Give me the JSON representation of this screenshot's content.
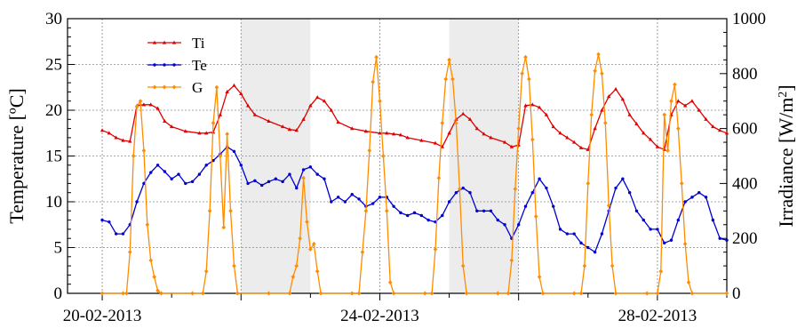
{
  "chart_data": {
    "type": "line",
    "title": "",
    "xlabel": "",
    "ylabel_left": "Temperature [ºC]",
    "ylabel_right_main": "Irradiance [W/m",
    "ylabel_right_sup": "2",
    "ylabel_right_end": "]",
    "x_range_days": [
      -0.5,
      9.0
    ],
    "x_start_date": "20-02-2013",
    "x_tick_labels": [
      {
        "day": 0,
        "label": "20-02-2013"
      },
      {
        "day": 4,
        "label": "24-02-2013"
      },
      {
        "day": 8,
        "label": "28-02-2013"
      }
    ],
    "x_major_ticks": [
      0,
      2,
      4,
      6,
      8
    ],
    "ylim_left": [
      0,
      30
    ],
    "yticks_left": [
      0,
      5,
      10,
      15,
      20,
      25,
      30
    ],
    "ylim_right": [
      0,
      1000
    ],
    "yticks_right": [
      0,
      200,
      400,
      600,
      800,
      1000
    ],
    "grid": true,
    "shaded_ranges": [
      [
        2.0,
        3.0
      ],
      [
        5.0,
        6.0
      ]
    ],
    "legend": {
      "placement": "top-left"
    },
    "colors": {
      "Ti": "#e00000",
      "Te": "#0000d0",
      "G": "#ff8c00",
      "shade": "#ececec",
      "grid": "#8a8a8a"
    },
    "series": [
      {
        "name": "Ti",
        "axis": "left",
        "marker": "triangle",
        "points": [
          [
            0.0,
            17.8
          ],
          [
            0.1,
            17.5
          ],
          [
            0.2,
            17.0
          ],
          [
            0.3,
            16.7
          ],
          [
            0.4,
            16.6
          ],
          [
            0.5,
            20.5
          ],
          [
            0.6,
            20.6
          ],
          [
            0.7,
            20.6
          ],
          [
            0.8,
            20.2
          ],
          [
            0.9,
            18.8
          ],
          [
            1.0,
            18.2
          ],
          [
            1.2,
            17.7
          ],
          [
            1.4,
            17.5
          ],
          [
            1.5,
            17.5
          ],
          [
            1.6,
            17.6
          ],
          [
            1.7,
            19.5
          ],
          [
            1.8,
            22.0
          ],
          [
            1.9,
            22.7
          ],
          [
            2.0,
            21.8
          ],
          [
            2.1,
            20.5
          ],
          [
            2.2,
            19.5
          ],
          [
            2.4,
            18.8
          ],
          [
            2.6,
            18.2
          ],
          [
            2.7,
            17.9
          ],
          [
            2.8,
            17.8
          ],
          [
            2.9,
            19.0
          ],
          [
            3.0,
            20.5
          ],
          [
            3.1,
            21.4
          ],
          [
            3.2,
            21.0
          ],
          [
            3.3,
            20.0
          ],
          [
            3.4,
            18.7
          ],
          [
            3.6,
            18.0
          ],
          [
            3.8,
            17.7
          ],
          [
            4.0,
            17.5
          ],
          [
            4.1,
            17.5
          ],
          [
            4.2,
            17.4
          ],
          [
            4.3,
            17.3
          ],
          [
            4.4,
            17.0
          ],
          [
            4.6,
            16.7
          ],
          [
            4.8,
            16.4
          ],
          [
            4.9,
            16.0
          ],
          [
            5.0,
            17.5
          ],
          [
            5.1,
            19.0
          ],
          [
            5.2,
            19.6
          ],
          [
            5.3,
            19.0
          ],
          [
            5.4,
            18.0
          ],
          [
            5.5,
            17.4
          ],
          [
            5.6,
            17.0
          ],
          [
            5.8,
            16.5
          ],
          [
            5.9,
            16.0
          ],
          [
            6.0,
            16.2
          ],
          [
            6.1,
            20.5
          ],
          [
            6.2,
            20.6
          ],
          [
            6.3,
            20.3
          ],
          [
            6.4,
            19.5
          ],
          [
            6.5,
            18.2
          ],
          [
            6.6,
            17.5
          ],
          [
            6.7,
            17.0
          ],
          [
            6.8,
            16.5
          ],
          [
            6.9,
            15.9
          ],
          [
            7.0,
            15.7
          ],
          [
            7.1,
            18.0
          ],
          [
            7.2,
            20.0
          ],
          [
            7.3,
            21.5
          ],
          [
            7.4,
            22.3
          ],
          [
            7.5,
            21.2
          ],
          [
            7.6,
            19.5
          ],
          [
            7.7,
            18.5
          ],
          [
            7.8,
            17.5
          ],
          [
            7.9,
            16.8
          ],
          [
            8.0,
            16.0
          ],
          [
            8.1,
            15.7
          ],
          [
            8.2,
            19.5
          ],
          [
            8.3,
            21.0
          ],
          [
            8.4,
            20.5
          ],
          [
            8.5,
            21.0
          ],
          [
            8.6,
            20.0
          ],
          [
            8.7,
            19.0
          ],
          [
            8.8,
            18.2
          ],
          [
            8.9,
            17.8
          ],
          [
            9.0,
            17.5
          ]
        ]
      },
      {
        "name": "Te",
        "axis": "left",
        "marker": "dot",
        "points": [
          [
            0.0,
            8.0
          ],
          [
            0.1,
            7.8
          ],
          [
            0.2,
            6.5
          ],
          [
            0.3,
            6.5
          ],
          [
            0.4,
            7.5
          ],
          [
            0.5,
            10.0
          ],
          [
            0.6,
            12.0
          ],
          [
            0.7,
            13.2
          ],
          [
            0.8,
            14.0
          ],
          [
            0.9,
            13.3
          ],
          [
            1.0,
            12.5
          ],
          [
            1.1,
            13.0
          ],
          [
            1.2,
            12.0
          ],
          [
            1.3,
            12.2
          ],
          [
            1.4,
            13.0
          ],
          [
            1.5,
            14.0
          ],
          [
            1.6,
            14.5
          ],
          [
            1.7,
            15.2
          ],
          [
            1.8,
            16.0
          ],
          [
            1.9,
            15.5
          ],
          [
            2.0,
            14.0
          ],
          [
            2.1,
            12.0
          ],
          [
            2.2,
            12.3
          ],
          [
            2.3,
            11.8
          ],
          [
            2.4,
            12.2
          ],
          [
            2.5,
            12.5
          ],
          [
            2.6,
            12.2
          ],
          [
            2.7,
            13.0
          ],
          [
            2.8,
            11.5
          ],
          [
            2.9,
            13.5
          ],
          [
            3.0,
            13.8
          ],
          [
            3.1,
            13.0
          ],
          [
            3.2,
            12.5
          ],
          [
            3.3,
            10.0
          ],
          [
            3.4,
            10.5
          ],
          [
            3.5,
            10.0
          ],
          [
            3.6,
            10.8
          ],
          [
            3.7,
            10.3
          ],
          [
            3.8,
            9.5
          ],
          [
            3.9,
            9.8
          ],
          [
            4.0,
            10.5
          ],
          [
            4.1,
            10.5
          ],
          [
            4.2,
            9.5
          ],
          [
            4.3,
            8.8
          ],
          [
            4.4,
            8.5
          ],
          [
            4.5,
            8.8
          ],
          [
            4.6,
            8.5
          ],
          [
            4.7,
            8.0
          ],
          [
            4.8,
            7.8
          ],
          [
            4.9,
            8.5
          ],
          [
            5.0,
            10.0
          ],
          [
            5.1,
            11.0
          ],
          [
            5.2,
            11.5
          ],
          [
            5.3,
            11.0
          ],
          [
            5.4,
            9.0
          ],
          [
            5.5,
            9.0
          ],
          [
            5.6,
            9.0
          ],
          [
            5.7,
            8.0
          ],
          [
            5.8,
            7.5
          ],
          [
            5.9,
            6.0
          ],
          [
            6.0,
            7.5
          ],
          [
            6.1,
            9.5
          ],
          [
            6.2,
            11.0
          ],
          [
            6.3,
            12.5
          ],
          [
            6.4,
            11.5
          ],
          [
            6.5,
            9.5
          ],
          [
            6.6,
            7.0
          ],
          [
            6.7,
            6.5
          ],
          [
            6.8,
            6.5
          ],
          [
            6.9,
            5.5
          ],
          [
            7.0,
            5.0
          ],
          [
            7.1,
            4.5
          ],
          [
            7.2,
            6.5
          ],
          [
            7.3,
            9.0
          ],
          [
            7.4,
            11.5
          ],
          [
            7.5,
            12.5
          ],
          [
            7.6,
            11.0
          ],
          [
            7.7,
            9.0
          ],
          [
            7.8,
            8.0
          ],
          [
            7.9,
            7.0
          ],
          [
            8.0,
            7.0
          ],
          [
            8.1,
            5.5
          ],
          [
            8.2,
            5.8
          ],
          [
            8.3,
            8.0
          ],
          [
            8.4,
            10.0
          ],
          [
            8.5,
            10.5
          ],
          [
            8.6,
            11.0
          ],
          [
            8.7,
            10.5
          ],
          [
            8.8,
            8.0
          ],
          [
            8.9,
            6.0
          ],
          [
            9.0,
            5.8
          ]
        ]
      },
      {
        "name": "G",
        "axis": "right",
        "marker": "diamond",
        "points": [
          [
            0.0,
            0
          ],
          [
            0.3,
            0
          ],
          [
            0.35,
            0
          ],
          [
            0.4,
            150
          ],
          [
            0.45,
            500
          ],
          [
            0.5,
            680
          ],
          [
            0.55,
            700
          ],
          [
            0.6,
            520
          ],
          [
            0.65,
            250
          ],
          [
            0.7,
            120
          ],
          [
            0.75,
            60
          ],
          [
            0.8,
            10
          ],
          [
            0.85,
            0
          ],
          [
            1.3,
            0
          ],
          [
            1.45,
            0
          ],
          [
            1.5,
            80
          ],
          [
            1.55,
            300
          ],
          [
            1.6,
            620
          ],
          [
            1.65,
            750
          ],
          [
            1.7,
            500
          ],
          [
            1.75,
            240
          ],
          [
            1.8,
            580
          ],
          [
            1.85,
            300
          ],
          [
            1.9,
            100
          ],
          [
            1.95,
            0
          ],
          [
            2.4,
            0
          ],
          [
            2.7,
            0
          ],
          [
            2.75,
            60
          ],
          [
            2.8,
            100
          ],
          [
            2.85,
            200
          ],
          [
            2.9,
            420
          ],
          [
            2.95,
            260
          ],
          [
            3.0,
            160
          ],
          [
            3.05,
            180
          ],
          [
            3.1,
            80
          ],
          [
            3.15,
            0
          ],
          [
            3.6,
            0
          ],
          [
            3.7,
            0
          ],
          [
            3.75,
            150
          ],
          [
            3.8,
            300
          ],
          [
            3.85,
            520
          ],
          [
            3.9,
            770
          ],
          [
            3.95,
            860
          ],
          [
            4.0,
            700
          ],
          [
            4.05,
            500
          ],
          [
            4.1,
            300
          ],
          [
            4.15,
            40
          ],
          [
            4.2,
            0
          ],
          [
            4.65,
            0
          ],
          [
            4.75,
            0
          ],
          [
            4.8,
            160
          ],
          [
            4.85,
            420
          ],
          [
            4.9,
            620
          ],
          [
            4.95,
            780
          ],
          [
            5.0,
            850
          ],
          [
            5.05,
            780
          ],
          [
            5.1,
            620
          ],
          [
            5.15,
            380
          ],
          [
            5.2,
            100
          ],
          [
            5.25,
            0
          ],
          [
            5.7,
            0
          ],
          [
            5.85,
            0
          ],
          [
            5.9,
            120
          ],
          [
            5.95,
            380
          ],
          [
            6.0,
            600
          ],
          [
            6.05,
            800
          ],
          [
            6.1,
            860
          ],
          [
            6.15,
            780
          ],
          [
            6.2,
            560
          ],
          [
            6.25,
            280
          ],
          [
            6.3,
            60
          ],
          [
            6.35,
            0
          ],
          [
            6.8,
            0
          ],
          [
            6.9,
            0
          ],
          [
            6.95,
            100
          ],
          [
            7.0,
            400
          ],
          [
            7.05,
            650
          ],
          [
            7.1,
            810
          ],
          [
            7.15,
            870
          ],
          [
            7.2,
            800
          ],
          [
            7.25,
            620
          ],
          [
            7.3,
            320
          ],
          [
            7.35,
            100
          ],
          [
            7.4,
            0
          ],
          [
            7.85,
            0
          ],
          [
            8.0,
            0
          ],
          [
            8.05,
            80
          ],
          [
            8.1,
            650
          ],
          [
            8.15,
            520
          ],
          [
            8.2,
            700
          ],
          [
            8.25,
            760
          ],
          [
            8.3,
            600
          ],
          [
            8.35,
            400
          ],
          [
            8.4,
            180
          ],
          [
            8.45,
            40
          ],
          [
            8.5,
            0
          ],
          [
            9.0,
            0
          ]
        ]
      }
    ]
  }
}
